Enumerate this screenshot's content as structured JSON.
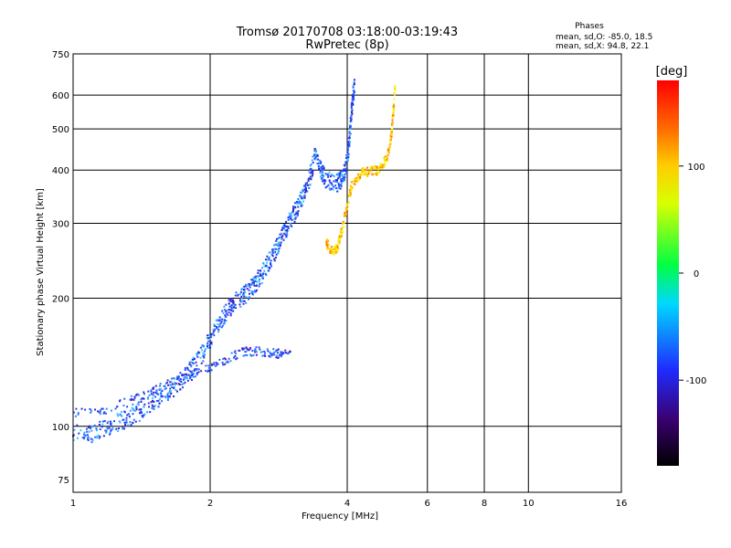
{
  "title": "Tromsø 20170708 03:18:00-03:19:43",
  "subtitle": "RwPretec (8p)",
  "phase_info": {
    "heading": "Phases",
    "o_line": "mean, sd,O: -85.0, 18.5",
    "x_line": "mean, sd,X:  94.8, 22.1"
  },
  "colorbar": {
    "label": "[deg]",
    "ticks": [
      "100",
      "0",
      "-100"
    ],
    "range": [
      -180,
      180
    ]
  },
  "chart_data": {
    "type": "scatter",
    "title": "Tromsø 20170708 03:18:00-03:19:43",
    "subtitle": "RwPretec (8p)",
    "xlabel": "Frequency [MHz]",
    "ylabel": "Stationary phase Virtual Height [km]",
    "xscale": "log2",
    "yscale": "log",
    "xlim": [
      1,
      16
    ],
    "ylim": [
      70,
      750
    ],
    "xticks": [
      "1",
      "2",
      "4",
      "6",
      "8",
      "10",
      "16"
    ],
    "yticks": [
      "75",
      "100",
      "200",
      "300",
      "400",
      "500",
      "600",
      "750"
    ],
    "grid": true,
    "color_scale": "phase [deg], rainbow, -180 to 180",
    "o_trace_points": [
      [
        1.0,
        97
      ],
      [
        1.1,
        96
      ],
      [
        1.2,
        100
      ],
      [
        1.3,
        104
      ],
      [
        1.4,
        108
      ],
      [
        1.5,
        115
      ],
      [
        1.6,
        120
      ],
      [
        1.7,
        126
      ],
      [
        1.8,
        135
      ],
      [
        1.9,
        145
      ],
      [
        2.0,
        160
      ],
      [
        2.1,
        176
      ],
      [
        2.2,
        190
      ],
      [
        2.3,
        198
      ],
      [
        2.4,
        205
      ],
      [
        2.5,
        215
      ],
      [
        2.6,
        228
      ],
      [
        2.7,
        245
      ],
      [
        2.8,
        262
      ],
      [
        2.9,
        285
      ],
      [
        3.0,
        305
      ],
      [
        3.1,
        325
      ],
      [
        3.2,
        350
      ],
      [
        3.3,
        380
      ],
      [
        3.4,
        430
      ],
      [
        3.5,
        400
      ],
      [
        3.6,
        380
      ],
      [
        3.8,
        372
      ],
      [
        3.9,
        382
      ],
      [
        4.0,
        420
      ],
      [
        4.05,
        480
      ],
      [
        4.1,
        560
      ],
      [
        4.15,
        640
      ]
    ],
    "x_trace_points": [
      [
        3.6,
        270
      ],
      [
        3.7,
        258
      ],
      [
        3.8,
        262
      ],
      [
        3.9,
        290
      ],
      [
        4.0,
        330
      ],
      [
        4.1,
        370
      ],
      [
        4.3,
        395
      ],
      [
        4.5,
        398
      ],
      [
        4.7,
        400
      ],
      [
        4.9,
        430
      ],
      [
        5.0,
        480
      ],
      [
        5.05,
        540
      ],
      [
        5.1,
        640
      ]
    ],
    "lower_trace_points": [
      [
        1.0,
        108
      ],
      [
        1.2,
        110
      ],
      [
        1.4,
        117
      ],
      [
        1.6,
        125
      ],
      [
        1.8,
        131
      ],
      [
        2.0,
        138
      ],
      [
        2.2,
        145
      ],
      [
        2.4,
        150
      ],
      [
        2.6,
        150
      ],
      [
        2.8,
        148
      ],
      [
        3.0,
        150
      ]
    ]
  }
}
